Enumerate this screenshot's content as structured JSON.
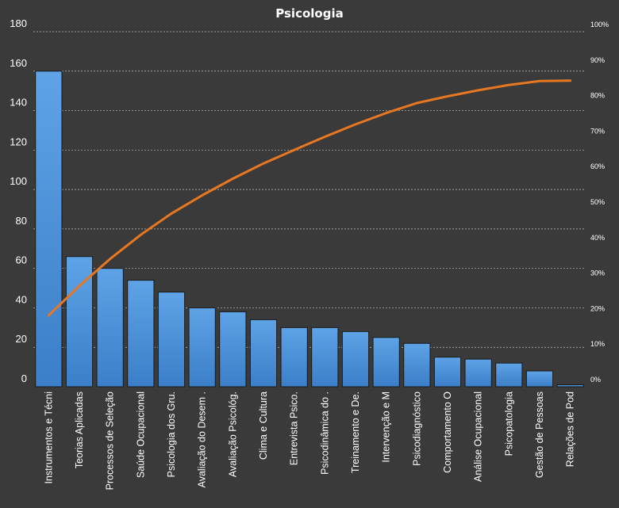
{
  "chart_data": {
    "type": "bar",
    "title": "Psicologia",
    "xlabel": "",
    "ylabel": "",
    "ylim": [
      0,
      180
    ],
    "y_ticks": [
      0,
      20,
      40,
      60,
      80,
      100,
      120,
      140,
      160,
      180
    ],
    "y2lim": [
      0,
      100
    ],
    "y2_ticks": [
      "0%",
      "10%",
      "20%",
      "30%",
      "40%",
      "50%",
      "60%",
      "70%",
      "80%",
      "90%",
      "100%"
    ],
    "grid": true,
    "grid_style": "dotted",
    "legend": "none",
    "bar_color": "#4a8fd8",
    "line_color": "#e87722",
    "background_color": "#3a3a3a",
    "categories": [
      "Instrumentos  e Técni",
      "Teorias Aplicadas",
      "Processos de Seleção",
      "Saúde Ocupacional",
      "Psicologia dos Gru.",
      "Avaliação do Desem .",
      "Avaliação Psicológ.",
      "Clima e Cultura",
      "Entrevista Psico.",
      "Psicodinâmica do .",
      "Treinamento e De.",
      "Intervenção  e M",
      "Psicodiagnóstico",
      "Comportamento  O",
      "Análise Ocupacional",
      "Psicopatologia",
      "Gestão de Pessoas",
      "Relações de Pod"
    ],
    "series": [
      {
        "type": "bar",
        "axis": "primary",
        "values": [
          160,
          66,
          60,
          54,
          48,
          40,
          38,
          34,
          30,
          30,
          28,
          25,
          22,
          15,
          14,
          12,
          8,
          1
        ]
      },
      {
        "type": "line",
        "axis": "secondary",
        "unit": "%",
        "values": [
          20.1,
          28.4,
          36.0,
          42.8,
          48.8,
          53.9,
          58.6,
          62.9,
          66.7,
          70.4,
          73.9,
          77.1,
          79.9,
          81.8,
          83.5,
          85.0,
          86.1,
          86.2
        ]
      }
    ]
  }
}
